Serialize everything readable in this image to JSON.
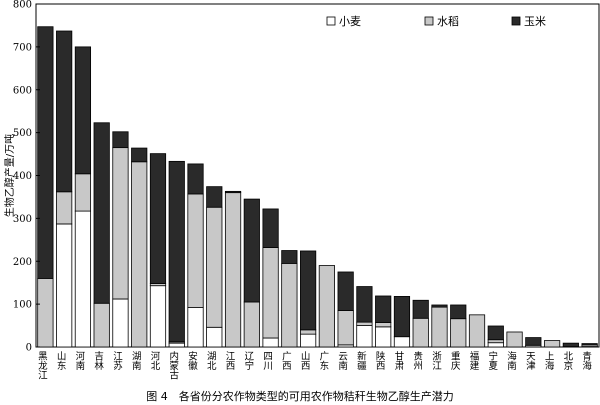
{
  "chart_data": {
    "type": "bar",
    "stacked": true,
    "ylabel": "生物乙醇产量/万吨",
    "ylim": [
      0,
      800
    ],
    "yticks": [
      0,
      100,
      200,
      300,
      400,
      500,
      600,
      700,
      800
    ],
    "legend_position": "top-right",
    "categories": [
      "黑龙江",
      "山东",
      "河南",
      "吉林",
      "江苏",
      "湖南",
      "河北",
      "内蒙古",
      "安徽",
      "湖北",
      "江西",
      "辽宁",
      "四川",
      "广西",
      "山西",
      "广东",
      "云南",
      "新疆",
      "陕西",
      "甘肃",
      "贵州",
      "浙江",
      "重庆",
      "福建",
      "宁夏",
      "海南",
      "天津",
      "上海",
      "北京",
      "青海"
    ],
    "series": [
      {
        "name": "小麦",
        "color": "#ffffff",
        "values": [
          0,
          287,
          317,
          0,
          112,
          0,
          143,
          9,
          92,
          46,
          0,
          0,
          21,
          0,
          30,
          0,
          5,
          50,
          47,
          24,
          0,
          0,
          0,
          0,
          10,
          0,
          0,
          0,
          0,
          1
        ]
      },
      {
        "name": "水稻",
        "color": "#c8c8c8",
        "values": [
          160,
          75,
          87,
          102,
          353,
          432,
          5,
          3,
          265,
          280,
          360,
          105,
          211,
          195,
          10,
          190,
          80,
          8,
          10,
          0,
          67,
          93,
          66,
          75,
          7,
          35,
          4,
          15,
          1,
          4
        ]
      },
      {
        "name": "玉米",
        "color": "#2a2a2a",
        "values": [
          587,
          375,
          296,
          421,
          37,
          32,
          303,
          421,
          70,
          48,
          3,
          240,
          90,
          30,
          184,
          0,
          90,
          83,
          62,
          94,
          42,
          5,
          32,
          0,
          32,
          0,
          18,
          0,
          8,
          3
        ]
      }
    ]
  },
  "caption": "图 4　各省份分农作物类型的可用农作物秸秆生物乙醇生产潜力"
}
